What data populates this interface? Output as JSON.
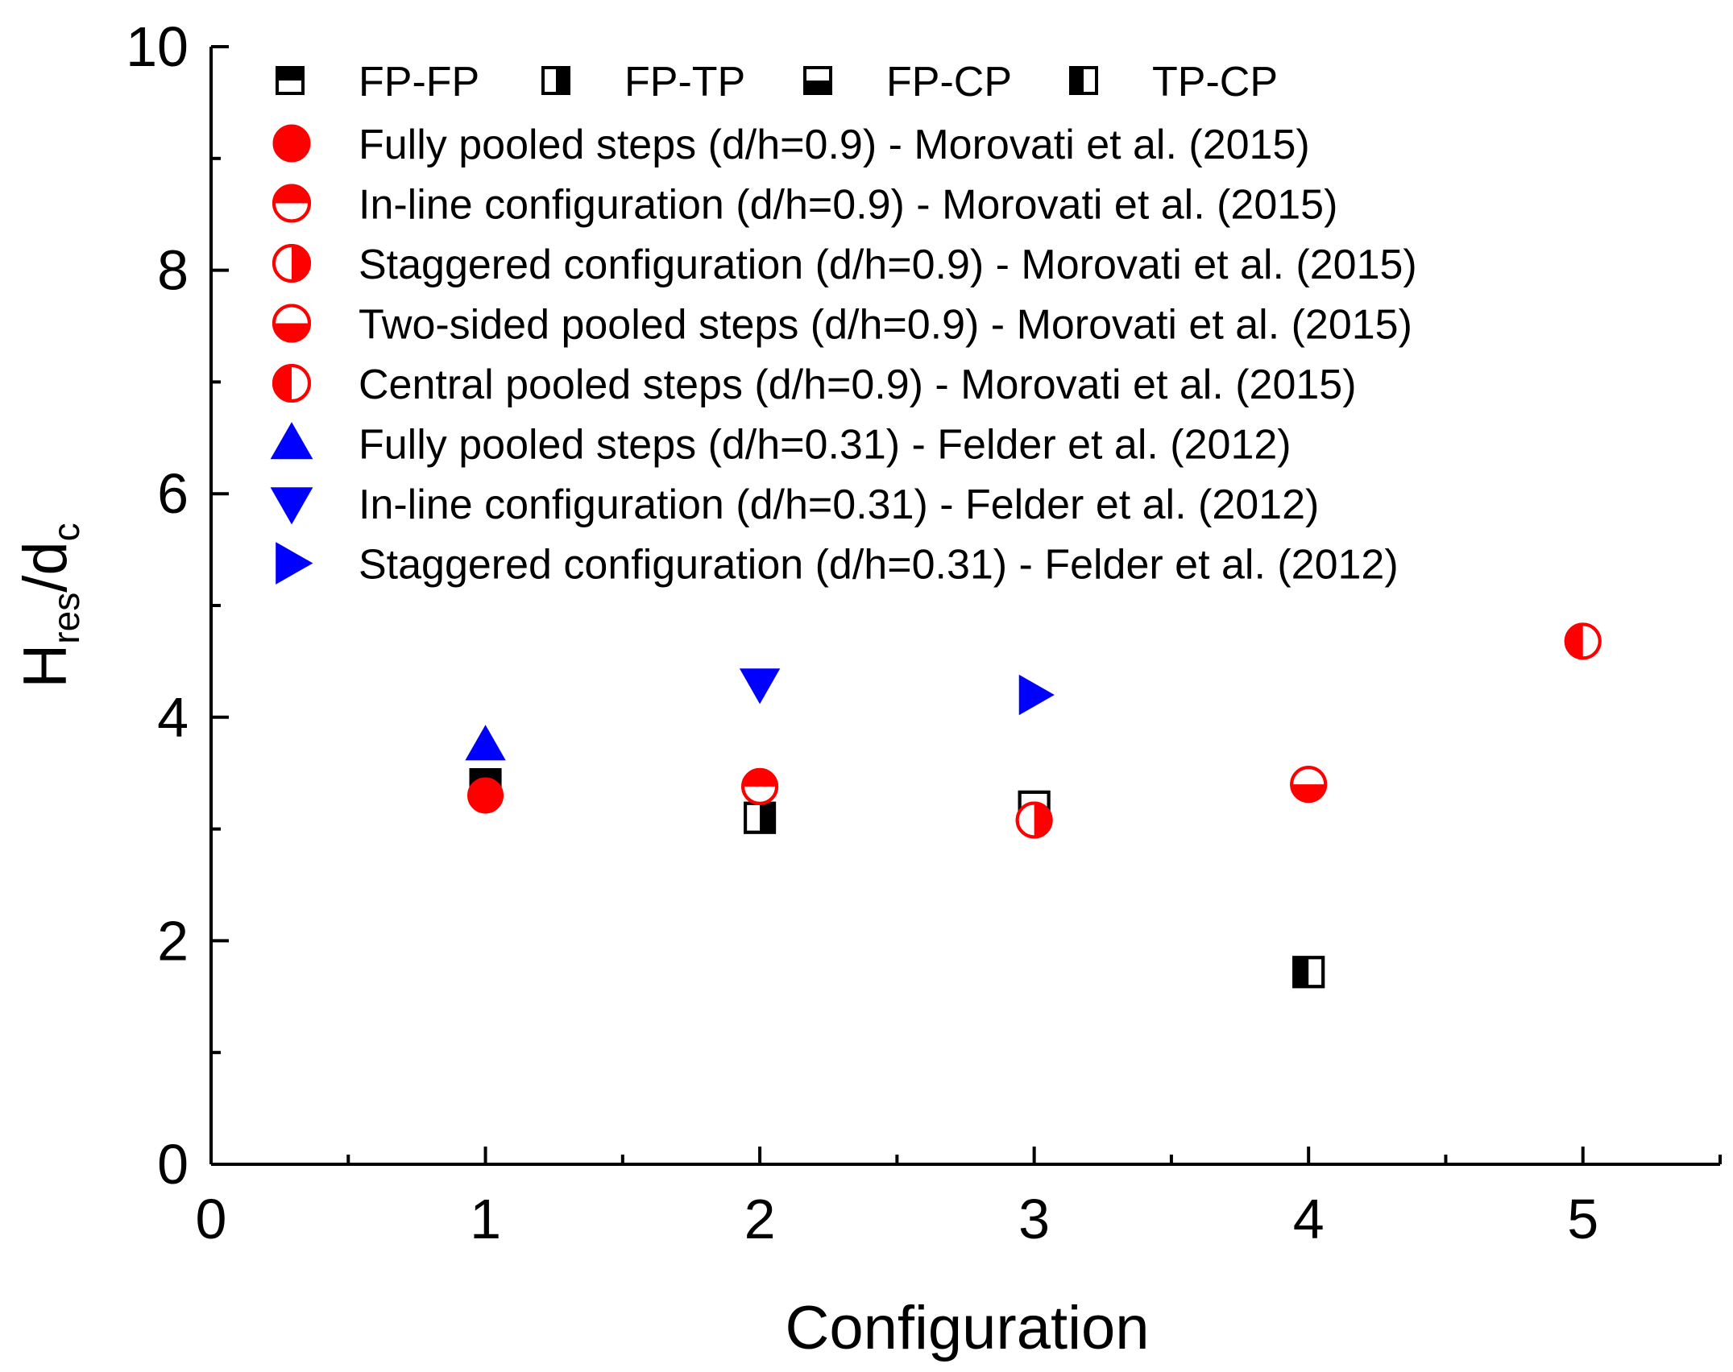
{
  "chart_data": {
    "type": "scatter",
    "title": "",
    "xlabel": "Configuration",
    "ylabel": {
      "main": "H",
      "sub1": "res",
      "slash": "/d",
      "sub2": "c"
    },
    "xlim": [
      0,
      5.5
    ],
    "ylim": [
      0,
      10
    ],
    "x_ticks": [
      0,
      1,
      2,
      3,
      4,
      5
    ],
    "y_ticks": [
      0,
      2,
      4,
      6,
      8,
      10
    ],
    "x_tick_labels": [
      "0",
      "1",
      "2",
      "3",
      "4",
      "5"
    ],
    "y_tick_labels": [
      "0",
      "2",
      "4",
      "6",
      "8",
      "10"
    ],
    "legend_position": "top-left",
    "colors": {
      "black": "#000000",
      "red": "#ff0000",
      "blue": "#0000ff"
    },
    "series": [
      {
        "name": "FP-FP",
        "marker": "square-half-top",
        "color": "#000000",
        "points": [
          [
            1,
            3.4
          ]
        ]
      },
      {
        "name": "FP-TP",
        "marker": "square-half-right",
        "color": "#000000",
        "points": [
          [
            2,
            3.1
          ]
        ]
      },
      {
        "name": "FP-CP",
        "marker": "square-half-bottom",
        "color": "#000000",
        "points": [
          [
            3,
            3.2
          ]
        ]
      },
      {
        "name": "TP-CP",
        "marker": "square-half-left",
        "color": "#000000",
        "points": [
          [
            4,
            1.72
          ]
        ]
      },
      {
        "name": "Fully pooled steps (d/h=0.9) - Morovati et al. (2015)",
        "marker": "circle-full",
        "color": "#ff0000",
        "points": [
          [
            1,
            3.3
          ]
        ]
      },
      {
        "name": "In-line configuration (d/h=0.9) - Morovati et al. (2015)",
        "marker": "circle-half-top",
        "color": "#ff0000",
        "points": [
          [
            2,
            3.38
          ]
        ]
      },
      {
        "name": "Staggered configuration (d/h=0.9) - Morovati et al. (2015)",
        "marker": "circle-half-right",
        "color": "#ff0000",
        "points": [
          [
            3,
            3.08
          ]
        ]
      },
      {
        "name": "Two-sided pooled steps (d/h=0.9) - Morovati et al. (2015)",
        "marker": "circle-half-bottom",
        "color": "#ff0000",
        "points": [
          [
            4,
            3.4
          ]
        ]
      },
      {
        "name": "Central pooled steps (d/h=0.9) - Morovati et al. (2015)",
        "marker": "circle-half-left",
        "color": "#ff0000",
        "points": [
          [
            5,
            4.68
          ]
        ]
      },
      {
        "name": "Fully pooled steps (d/h=0.31) - Felder et al. (2012)",
        "marker": "triangle-up",
        "color": "#0000ff",
        "points": [
          [
            1,
            3.75
          ]
        ]
      },
      {
        "name": "In-line configuration (d/h=0.31) - Felder et al. (2012)",
        "marker": "triangle-down",
        "color": "#0000ff",
        "points": [
          [
            2,
            4.3
          ]
        ]
      },
      {
        "name": "Staggered configuration (d/h=0.31) - Felder et al. (2012)",
        "marker": "triangle-right",
        "color": "#0000ff",
        "points": [
          [
            3,
            4.2
          ]
        ]
      }
    ]
  }
}
